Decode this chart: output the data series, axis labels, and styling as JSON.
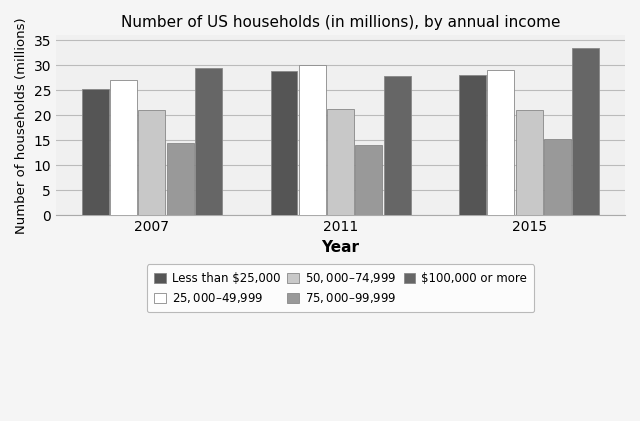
{
  "title": "Number of US households (in millions), by annual income",
  "xlabel": "Year",
  "ylabel": "Number of households (millions)",
  "years": [
    "2007",
    "2011",
    "2015"
  ],
  "categories": [
    "Less than $25,000",
    "$25,000–$49,999",
    "$50,000–$74,999",
    "$75,000–$99,999",
    "$100,000 or more"
  ],
  "values": {
    "Less than $25,000": [
      25.2,
      28.9,
      28.0
    ],
    "$25,000–$49,999": [
      27.0,
      30.0,
      29.0
    ],
    "$50,000–$74,999": [
      21.0,
      21.2,
      21.0
    ],
    "$75,000–$99,999": [
      14.5,
      14.0,
      15.2
    ],
    "$100,000 or more": [
      29.5,
      27.8,
      33.5
    ]
  },
  "colors": [
    "#555555",
    "#ffffff",
    "#c8c8c8",
    "#999999",
    "#666666"
  ],
  "bar_edge_color": "#888888",
  "ylim": [
    0,
    36
  ],
  "yticks": [
    0,
    5,
    10,
    15,
    20,
    25,
    30,
    35
  ],
  "figsize": [
    6.4,
    4.21
  ],
  "dpi": 100,
  "legend_ncol": 3,
  "background_color": "#f0f0f0"
}
